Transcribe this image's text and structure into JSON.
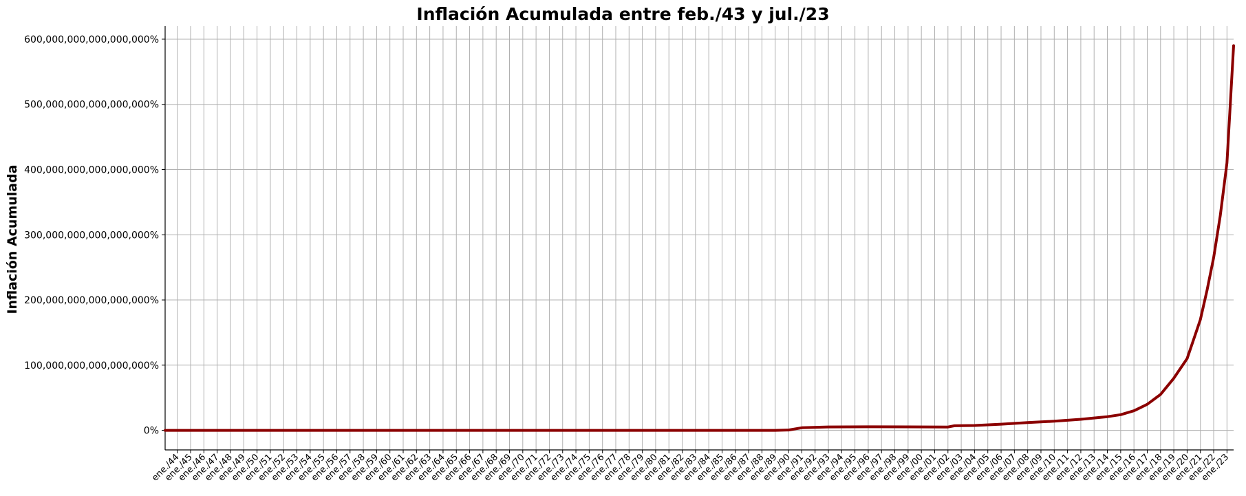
{
  "chart_data": {
    "type": "line",
    "title": "Inflación Acumulada  entre feb./43 y jul./23",
    "xlabel": "",
    "ylabel": "Inflación Acumulada",
    "x_range": [
      "feb./43",
      "jul./23"
    ],
    "ylim": [
      -30000000000000000,
      620000000000000000
    ],
    "y_ticks": [
      0,
      100000000000000000,
      200000000000000000,
      300000000000000000,
      400000000000000000,
      500000000000000000,
      600000000000000000
    ],
    "y_tick_labels": [
      "0%",
      "100,000,000,000,000,000%",
      "200,000,000,000,000,000%",
      "300,000,000,000,000,000%",
      "400,000,000,000,000,000%",
      "500,000,000,000,000,000%",
      "600,000,000,000,000,000%"
    ],
    "x_tick_labels": [
      "ene./44",
      "ene./45",
      "ene./46",
      "ene./47",
      "ene./48",
      "ene./49",
      "ene./50",
      "ene./51",
      "ene./52",
      "ene./53",
      "ene./54",
      "ene./55",
      "ene./56",
      "ene./57",
      "ene./58",
      "ene./59",
      "ene./60",
      "ene./61",
      "ene./62",
      "ene./63",
      "ene./64",
      "ene./65",
      "ene./66",
      "ene./67",
      "ene./68",
      "ene./69",
      "ene./70",
      "ene./71",
      "ene./72",
      "ene./73",
      "ene./74",
      "ene./75",
      "ene./76",
      "ene./77",
      "ene./78",
      "ene./79",
      "ene./80",
      "ene./81",
      "ene./82",
      "ene./83",
      "ene./84",
      "ene./85",
      "ene./86",
      "ene./87",
      "ene./88",
      "ene./89",
      "ene./90",
      "ene./91",
      "ene./92",
      "ene./93",
      "ene./94",
      "ene./95",
      "ene./96",
      "ene./97",
      "ene./98",
      "ene./99",
      "ene./00",
      "ene./01",
      "ene./02",
      "ene./03",
      "ene./04",
      "ene./05",
      "ene./06",
      "ene./07",
      "ene./08",
      "ene./09",
      "ene./10",
      "ene./11",
      "ene./12",
      "ene./13",
      "ene./14",
      "ene./15",
      "ene./16",
      "ene./17",
      "ene./18",
      "ene./19",
      "ene./20",
      "ene./21",
      "ene./22",
      "ene./23"
    ],
    "series": [
      {
        "color": "#8b0000",
        "points": [
          {
            "x": "feb./43",
            "y": 0
          },
          {
            "x": "ene./89",
            "y": 0
          },
          {
            "x": "ene./90",
            "y": 500000000000000
          },
          {
            "x": "ene./91",
            "y": 4000000000000000
          },
          {
            "x": "ene./93",
            "y": 5200000000000000
          },
          {
            "x": "ene./96",
            "y": 5500000000000000
          },
          {
            "x": "ene./99",
            "y": 5400000000000000
          },
          {
            "x": "ene./02",
            "y": 5100000000000000
          },
          {
            "x": "jul./02",
            "y": 7000000000000000
          },
          {
            "x": "ene./04",
            "y": 7500000000000000
          },
          {
            "x": "ene./06",
            "y": 9500000000000000
          },
          {
            "x": "ene./08",
            "y": 12000000000000000
          },
          {
            "x": "ene./10",
            "y": 14000000000000000
          },
          {
            "x": "ene./12",
            "y": 17000000000000000
          },
          {
            "x": "ene./14",
            "y": 21000000000000000
          },
          {
            "x": "ene./15",
            "y": 24000000000000000
          },
          {
            "x": "ene./16",
            "y": 30000000000000000
          },
          {
            "x": "ene./17",
            "y": 40000000000000000
          },
          {
            "x": "ene./18",
            "y": 55000000000000000
          },
          {
            "x": "ene./19",
            "y": 80000000000000000
          },
          {
            "x": "ene./20",
            "y": 110000000000000000
          },
          {
            "x": "jul./20",
            "y": 140000000000000000
          },
          {
            "x": "ene./21",
            "y": 170000000000000000
          },
          {
            "x": "jul./21",
            "y": 215000000000000000
          },
          {
            "x": "ene./22",
            "y": 265000000000000000
          },
          {
            "x": "jul./22",
            "y": 330000000000000000
          },
          {
            "x": "ene./23",
            "y": 410000000000000000
          },
          {
            "x": "jul./23",
            "y": 590000000000000000
          }
        ]
      }
    ],
    "grid": true,
    "legend": "none"
  }
}
